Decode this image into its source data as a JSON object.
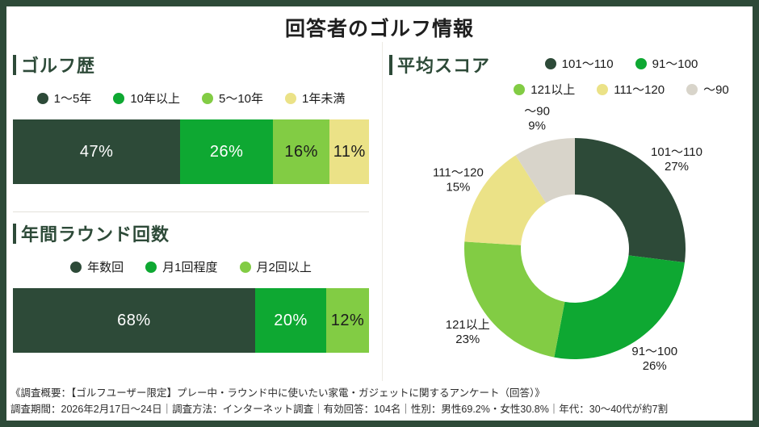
{
  "page": {
    "title": "回答者のゴルフ情報"
  },
  "colors": {
    "frame": "#2d4a38",
    "dark_green": "#2d4a38",
    "green": "#0ea832",
    "light_green": "#82cc44",
    "pale_yellow": "#ebe287",
    "gray": "#d8d4ca"
  },
  "chart_data": [
    {
      "type": "bar",
      "subtype": "stacked-horizontal",
      "title": "ゴルフ歴",
      "unit": "%",
      "legend_position": "top-center",
      "value_labels": "inside",
      "segments": [
        {
          "label": "1〜5年",
          "value": 47,
          "color": "#2d4a38"
        },
        {
          "label": "10年以上",
          "value": 26,
          "color": "#0ea832"
        },
        {
          "label": "5〜10年",
          "value": 16,
          "color": "#82cc44"
        },
        {
          "label": "1年未満",
          "value": 11,
          "color": "#ebe287"
        }
      ]
    },
    {
      "type": "bar",
      "subtype": "stacked-horizontal",
      "title": "年間ラウンド回数",
      "unit": "%",
      "legend_position": "top-center",
      "value_labels": "inside",
      "segments": [
        {
          "label": "年数回",
          "value": 68,
          "color": "#2d4a38"
        },
        {
          "label": "月1回程度",
          "value": 20,
          "color": "#0ea832"
        },
        {
          "label": "月2回以上",
          "value": 12,
          "color": "#82cc44"
        }
      ]
    },
    {
      "type": "pie",
      "subtype": "donut",
      "title": "平均スコア",
      "unit": "%",
      "start_angle": "top",
      "direction": "clockwise",
      "labels": "outside-with-percent",
      "legend_rows": [
        [
          0,
          1
        ],
        [
          2,
          3,
          4
        ]
      ],
      "slices": [
        {
          "label": "101〜110",
          "value": 27,
          "color": "#2d4a38"
        },
        {
          "label": "91〜100",
          "value": 26,
          "color": "#0ea832"
        },
        {
          "label": "121以上",
          "value": 23,
          "color": "#82cc44"
        },
        {
          "label": "111〜120",
          "value": 15,
          "color": "#ebe287"
        },
        {
          "label": "〜90",
          "value": 9,
          "color": "#d8d4ca"
        }
      ]
    }
  ],
  "footer": {
    "line1": "《調査概要：【ゴルフユーザー限定】プレー中・ラウンド中に使いたい家電・ガジェットに関するアンケート（回答）》",
    "line2": "調査期間：2026年2月17日〜24日｜調査方法：インターネット調査｜有効回答：104名｜性別：男性69.2%・女性30.8%｜年代：30〜40代が約7割"
  }
}
